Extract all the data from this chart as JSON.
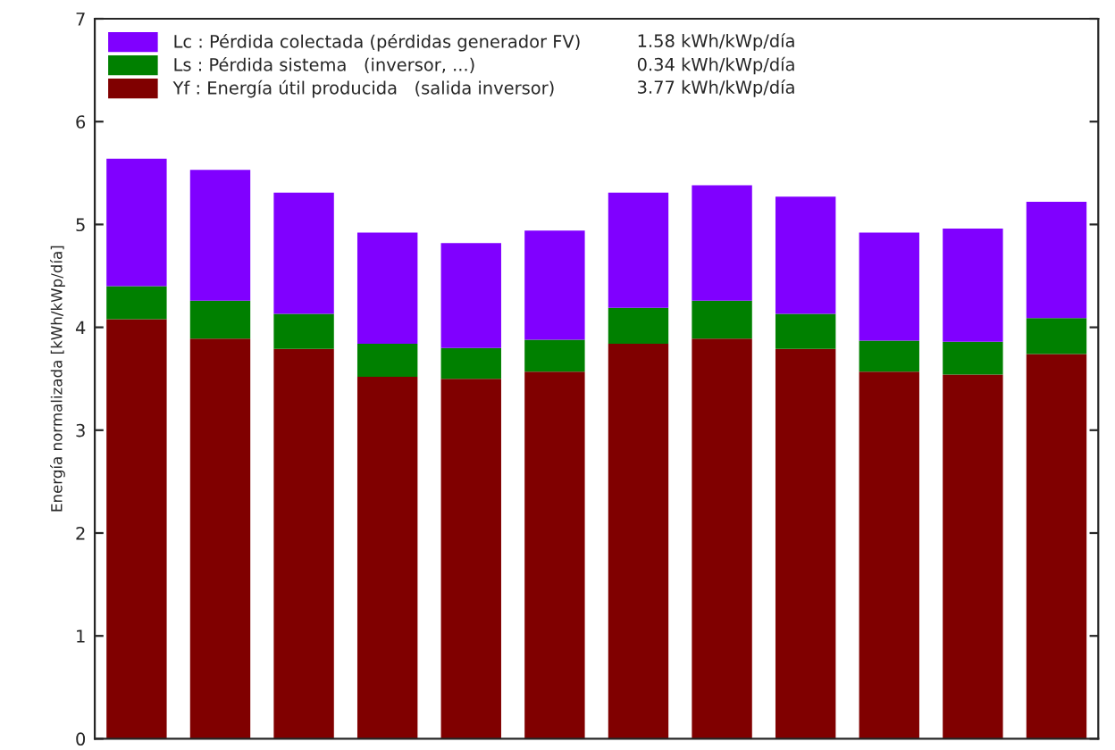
{
  "chart_data": {
    "type": "bar",
    "stacked": true,
    "ylabel": "Energía normalizada [kWh/kWp/día]",
    "categories": [
      null,
      null,
      null,
      null,
      null,
      null,
      null,
      null,
      null,
      null,
      null,
      null
    ],
    "series": [
      {
        "name": "Yf : Energía útil producida   (salida inversor)",
        "color": "#800000",
        "values": [
          4.08,
          3.89,
          3.79,
          3.52,
          3.5,
          3.57,
          3.84,
          3.89,
          3.79,
          3.57,
          3.54,
          3.74
        ]
      },
      {
        "name": "Ls : Pérdida sistema   (inversor, ...)",
        "color": "#008000",
        "values": [
          0.32,
          0.37,
          0.34,
          0.32,
          0.3,
          0.31,
          0.35,
          0.37,
          0.34,
          0.3,
          0.32,
          0.35
        ]
      },
      {
        "name": "Lc : Pérdida colectada (pérdidas generador FV)",
        "color": "#8000ff",
        "values": [
          1.24,
          1.27,
          1.18,
          1.08,
          1.02,
          1.06,
          1.12,
          1.12,
          1.14,
          1.05,
          1.1,
          1.13
        ]
      }
    ],
    "annotations": [
      "3.77 kWh/kWp/día",
      "0.34 kWh/kWp/día",
      "1.58 kWh/kWp/día"
    ],
    "ylim": [
      0,
      7
    ],
    "yticks": [
      0,
      1,
      2,
      3,
      4,
      5,
      6,
      7
    ],
    "legend": "top left",
    "grid": false
  }
}
